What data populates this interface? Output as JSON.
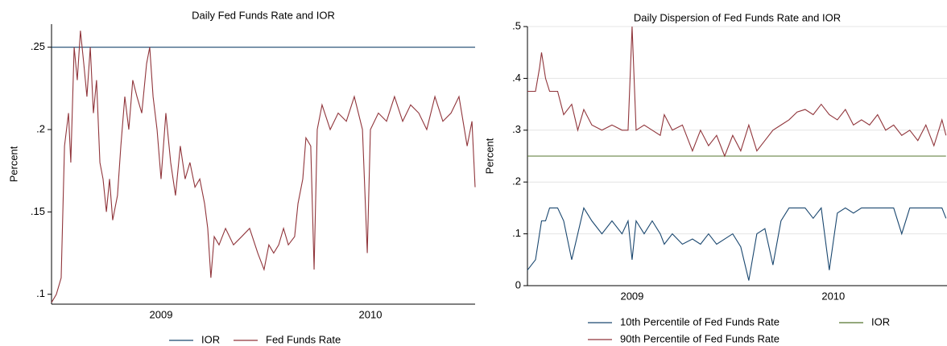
{
  "chart_data": [
    {
      "type": "line",
      "title": "Daily Fed Funds Rate and IOR",
      "y_label": "Percent",
      "x": [
        2008.977,
        2009.0,
        2009.023,
        2009.039,
        2009.058,
        2009.069,
        2009.085,
        2009.1,
        2009.115,
        2009.131,
        2009.146,
        2009.162,
        2009.177,
        2009.192,
        2009.208,
        2009.223,
        2009.239,
        2009.254,
        2009.269,
        2009.292,
        2009.308,
        2009.327,
        2009.346,
        2009.365,
        2009.385,
        2009.408,
        2009.431,
        2009.446,
        2009.462,
        2009.481,
        2009.5,
        2009.523,
        2009.546,
        2009.569,
        2009.592,
        2009.615,
        2009.638,
        2009.662,
        2009.685,
        2009.708,
        2009.723,
        2009.738,
        2009.754,
        2009.777,
        2009.808,
        2009.846,
        2009.885,
        2009.923,
        2009.962,
        2009.992,
        2010.015,
        2010.038,
        2010.062,
        2010.085,
        2010.108,
        2010.138,
        2010.154,
        2010.177,
        2010.192,
        2010.215,
        2010.231,
        2010.246,
        2010.269,
        2010.308,
        2010.346,
        2010.385,
        2010.423,
        2010.462,
        2010.485,
        2010.5,
        2010.538,
        2010.577,
        2010.615,
        2010.654,
        2010.692,
        2010.731,
        2010.769,
        2010.808,
        2010.846,
        2010.885,
        2010.923,
        2010.962,
        2010.985,
        2011.0
      ],
      "series": [
        {
          "name": "IOR",
          "color": "#1a476f",
          "values": [
            0.25,
            0.25,
            0.25,
            0.25,
            0.25,
            0.25,
            0.25,
            0.25,
            0.25,
            0.25,
            0.25,
            0.25,
            0.25,
            0.25,
            0.25,
            0.25,
            0.25,
            0.25,
            0.25,
            0.25,
            0.25,
            0.25,
            0.25,
            0.25,
            0.25,
            0.25,
            0.25,
            0.25,
            0.25,
            0.25,
            0.25,
            0.25,
            0.25,
            0.25,
            0.25,
            0.25,
            0.25,
            0.25,
            0.25,
            0.25,
            0.25,
            0.25,
            0.25,
            0.25,
            0.25,
            0.25,
            0.25,
            0.25,
            0.25,
            0.25,
            0.25,
            0.25,
            0.25,
            0.25,
            0.25,
            0.25,
            0.25,
            0.25,
            0.25,
            0.25,
            0.25,
            0.25,
            0.25,
            0.25,
            0.25,
            0.25,
            0.25,
            0.25,
            0.25,
            0.25,
            0.25,
            0.25,
            0.25,
            0.25,
            0.25,
            0.25,
            0.25,
            0.25,
            0.25,
            0.25,
            0.25,
            0.25,
            0.25,
            0.25
          ]
        },
        {
          "name": "Fed Funds Rate",
          "color": "#90353b",
          "values": [
            0.095,
            0.1,
            0.11,
            0.19,
            0.21,
            0.18,
            0.25,
            0.23,
            0.26,
            0.24,
            0.22,
            0.25,
            0.21,
            0.23,
            0.18,
            0.17,
            0.15,
            0.17,
            0.145,
            0.16,
            0.19,
            0.22,
            0.2,
            0.23,
            0.22,
            0.21,
            0.24,
            0.25,
            0.22,
            0.2,
            0.17,
            0.21,
            0.18,
            0.16,
            0.19,
            0.17,
            0.18,
            0.165,
            0.17,
            0.155,
            0.14,
            0.11,
            0.135,
            0.13,
            0.14,
            0.13,
            0.135,
            0.14,
            0.125,
            0.115,
            0.13,
            0.125,
            0.13,
            0.14,
            0.13,
            0.135,
            0.155,
            0.17,
            0.195,
            0.19,
            0.115,
            0.2,
            0.215,
            0.2,
            0.21,
            0.205,
            0.22,
            0.2,
            0.125,
            0.2,
            0.21,
            0.205,
            0.22,
            0.205,
            0.215,
            0.21,
            0.2,
            0.22,
            0.205,
            0.21,
            0.22,
            0.19,
            0.205,
            0.165
          ]
        }
      ],
      "xlim": [
        2008.977,
        2011.0
      ],
      "ylim": [
        0.094,
        0.264
      ],
      "xticks": [
        {
          "value": 2009.5,
          "label": "2009"
        },
        {
          "value": 2010.5,
          "label": "2010"
        }
      ],
      "yticks": [
        {
          "value": 0.1,
          "label": ".1"
        },
        {
          "value": 0.15,
          "label": ".15"
        },
        {
          "value": 0.2,
          "label": ".2"
        },
        {
          "value": 0.25,
          "label": ".25"
        }
      ],
      "grid": false
    },
    {
      "type": "line",
      "title": "Daily Dispersion of Fed Funds Rate and IOR",
      "y_label": "Percent",
      "x": [
        2008.98,
        2009.02,
        2009.04,
        2009.05,
        2009.07,
        2009.09,
        2009.13,
        2009.16,
        2009.2,
        2009.23,
        2009.26,
        2009.3,
        2009.35,
        2009.4,
        2009.45,
        2009.48,
        2009.5,
        2009.52,
        2009.56,
        2009.6,
        2009.64,
        2009.66,
        2009.7,
        2009.75,
        2009.8,
        2009.84,
        2009.88,
        2009.92,
        2009.96,
        2010.0,
        2010.04,
        2010.08,
        2010.12,
        2010.16,
        2010.2,
        2010.24,
        2010.28,
        2010.32,
        2010.36,
        2010.4,
        2010.44,
        2010.48,
        2010.52,
        2010.56,
        2010.6,
        2010.64,
        2010.68,
        2010.72,
        2010.76,
        2010.8,
        2010.84,
        2010.88,
        2010.92,
        2010.96,
        2011.0,
        2011.04,
        2011.06
      ],
      "series": [
        {
          "name": "10th Percentile of Fed Funds Rate",
          "color": "#1a476f",
          "values": [
            0.03,
            0.05,
            0.1,
            0.125,
            0.125,
            0.15,
            0.15,
            0.125,
            0.05,
            0.1,
            0.15,
            0.125,
            0.1,
            0.125,
            0.1,
            0.125,
            0.05,
            0.125,
            0.1,
            0.125,
            0.1,
            0.08,
            0.1,
            0.08,
            0.09,
            0.08,
            0.1,
            0.08,
            0.09,
            0.1,
            0.075,
            0.01,
            0.1,
            0.11,
            0.04,
            0.125,
            0.15,
            0.15,
            0.15,
            0.13,
            0.15,
            0.03,
            0.14,
            0.15,
            0.14,
            0.15,
            0.15,
            0.15,
            0.15,
            0.15,
            0.1,
            0.15,
            0.15,
            0.15,
            0.15,
            0.15,
            0.13
          ]
        },
        {
          "name": "IOR",
          "color": "#55752f",
          "values": [
            0.25,
            0.25,
            0.25,
            0.25,
            0.25,
            0.25,
            0.25,
            0.25,
            0.25,
            0.25,
            0.25,
            0.25,
            0.25,
            0.25,
            0.25,
            0.25,
            0.25,
            0.25,
            0.25,
            0.25,
            0.25,
            0.25,
            0.25,
            0.25,
            0.25,
            0.25,
            0.25,
            0.25,
            0.25,
            0.25,
            0.25,
            0.25,
            0.25,
            0.25,
            0.25,
            0.25,
            0.25,
            0.25,
            0.25,
            0.25,
            0.25,
            0.25,
            0.25,
            0.25,
            0.25,
            0.25,
            0.25,
            0.25,
            0.25,
            0.25,
            0.25,
            0.25,
            0.25,
            0.25,
            0.25,
            0.25,
            0.25
          ]
        },
        {
          "name": "90th Percentile of Fed Funds Rate",
          "color": "#90353b",
          "values": [
            0.375,
            0.375,
            0.42,
            0.45,
            0.4,
            0.375,
            0.375,
            0.33,
            0.35,
            0.3,
            0.34,
            0.31,
            0.3,
            0.31,
            0.3,
            0.3,
            0.5,
            0.3,
            0.31,
            0.3,
            0.29,
            0.33,
            0.3,
            0.31,
            0.26,
            0.3,
            0.27,
            0.29,
            0.25,
            0.29,
            0.26,
            0.31,
            0.26,
            0.28,
            0.3,
            0.31,
            0.32,
            0.335,
            0.34,
            0.33,
            0.35,
            0.33,
            0.32,
            0.34,
            0.31,
            0.32,
            0.31,
            0.33,
            0.3,
            0.31,
            0.29,
            0.3,
            0.28,
            0.31,
            0.27,
            0.32,
            0.29
          ]
        }
      ],
      "xlim": [
        2008.98,
        2011.065
      ],
      "ylim": [
        0,
        0.5
      ],
      "xticks": [
        {
          "value": 2009.5,
          "label": "2009"
        },
        {
          "value": 2010.5,
          "label": "2010"
        }
      ],
      "yticks": [
        0,
        {
          "value": 0.1,
          "label": ".1"
        },
        {
          "value": 0.2,
          "label": ".2"
        },
        {
          "value": 0.3,
          "label": ".3"
        },
        {
          "value": 0.4,
          "label": ".4"
        },
        {
          "value": 0.5,
          "label": ".5"
        }
      ],
      "grid": true
    }
  ]
}
